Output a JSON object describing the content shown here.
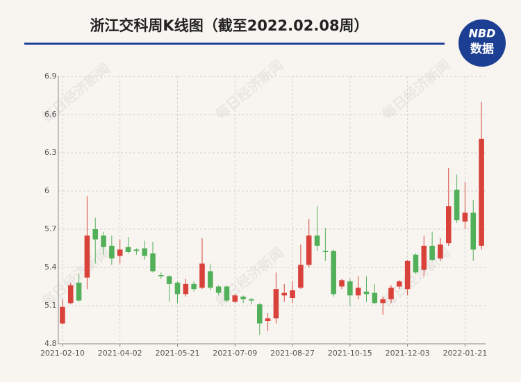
{
  "chart_data": {
    "type": "candlestick",
    "title": "浙江交科周K线图（截至2022.02.08周）",
    "logo": {
      "top": "NBD",
      "bottom": "数据"
    },
    "watermark": "每日经济新闻",
    "categories": [
      "2021-02-10",
      null,
      null,
      null,
      null,
      null,
      null,
      "2021-04-02",
      null,
      null,
      null,
      null,
      null,
      null,
      "2021-05-21",
      null,
      null,
      null,
      null,
      null,
      null,
      "2021-07-09",
      null,
      null,
      null,
      null,
      null,
      null,
      "2021-08-27",
      null,
      null,
      null,
      null,
      null,
      null,
      "2021-10-15",
      null,
      null,
      null,
      null,
      null,
      null,
      "2021-12-03",
      null,
      null,
      null,
      null,
      null,
      null,
      "2022-01-21",
      null,
      null
    ],
    "open": [
      4.96,
      5.12,
      5.28,
      5.32,
      5.7,
      5.65,
      5.57,
      5.49,
      5.56,
      5.54,
      5.55,
      5.51,
      5.34,
      5.33,
      5.28,
      5.19,
      5.27,
      5.24,
      5.37,
      5.25,
      5.25,
      5.13,
      5.17,
      5.15,
      5.11,
      4.98,
      5.0,
      5.18,
      5.16,
      5.24,
      5.42,
      5.65,
      5.53,
      5.53,
      5.25,
      5.29,
      5.18,
      5.21,
      5.2,
      5.12,
      5.15,
      5.25,
      5.23,
      5.5,
      5.38,
      5.57,
      5.47,
      5.59,
      6.01,
      5.76,
      5.83,
      5.57
    ],
    "close": [
      5.09,
      5.26,
      5.14,
      5.65,
      5.62,
      5.56,
      5.47,
      5.54,
      5.52,
      5.53,
      5.49,
      5.37,
      5.33,
      5.27,
      5.19,
      5.27,
      5.23,
      5.43,
      5.24,
      5.2,
      5.14,
      5.18,
      5.15,
      5.14,
      4.96,
      5.0,
      5.23,
      5.2,
      5.22,
      5.42,
      5.65,
      5.57,
      5.52,
      5.19,
      5.3,
      5.18,
      5.24,
      5.19,
      5.12,
      5.15,
      5.24,
      5.29,
      5.45,
      5.36,
      5.57,
      5.46,
      5.58,
      5.88,
      5.77,
      5.83,
      5.54,
      6.41
    ],
    "high": [
      5.15,
      5.28,
      5.35,
      5.96,
      5.79,
      5.68,
      5.65,
      5.62,
      5.64,
      5.55,
      5.61,
      5.6,
      5.36,
      5.34,
      5.29,
      5.31,
      5.29,
      5.63,
      5.43,
      5.26,
      5.26,
      5.19,
      5.18,
      5.16,
      5.12,
      5.04,
      5.36,
      5.27,
      5.29,
      5.58,
      5.78,
      5.88,
      5.71,
      5.54,
      5.31,
      5.31,
      5.33,
      5.33,
      5.27,
      5.17,
      5.26,
      5.3,
      5.46,
      5.51,
      5.65,
      5.68,
      5.63,
      6.18,
      6.13,
      6.07,
      5.93,
      6.7
    ],
    "low": [
      4.95,
      5.11,
      5.13,
      5.23,
      5.43,
      5.5,
      5.42,
      5.43,
      5.51,
      5.5,
      5.46,
      5.36,
      5.31,
      5.13,
      5.12,
      5.17,
      5.21,
      5.23,
      5.22,
      5.18,
      5.13,
      5.12,
      5.12,
      5.11,
      4.87,
      4.9,
      4.96,
      5.13,
      5.12,
      5.23,
      5.4,
      5.53,
      5.45,
      5.17,
      5.23,
      5.1,
      5.15,
      5.13,
      5.11,
      5.03,
      5.12,
      5.23,
      5.18,
      5.35,
      5.33,
      5.45,
      5.45,
      5.57,
      5.75,
      5.7,
      5.45,
      5.54
    ],
    "up_color": "#d8423b",
    "down_color": "#53b05a",
    "ylim": [
      4.8,
      6.9
    ],
    "yticks": [
      4.8,
      5.1,
      5.4,
      5.7,
      6,
      6.3,
      6.6,
      6.9
    ],
    "grid": true
  }
}
